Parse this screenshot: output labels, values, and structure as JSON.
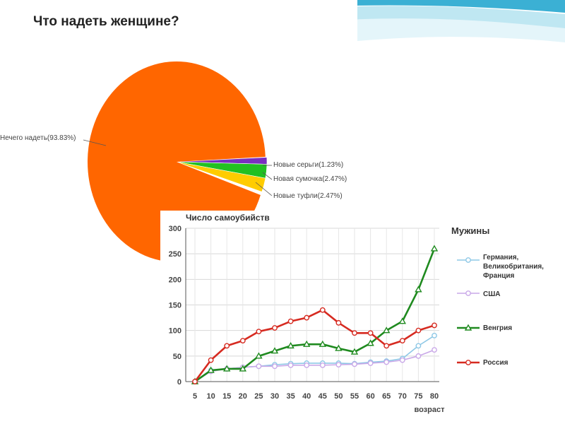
{
  "chart_data": [
    {
      "type": "pie",
      "title": "Что надеть женщине?",
      "slices": [
        {
          "label": "Нечего надеть(93.83%)",
          "value": 93.83,
          "color": "#ff6600"
        },
        {
          "label": "Новые серьги(1.23%)",
          "value": 1.23,
          "color": "#7a2fc0"
        },
        {
          "label": "Новая сумочка(2.47%)",
          "value": 2.47,
          "color": "#22c022"
        },
        {
          "label": "Новые туфли(2.47%)",
          "value": 2.47,
          "color": "#ffcc00"
        }
      ],
      "legend": "labels-outside"
    },
    {
      "type": "line",
      "title": "Число самоубийств",
      "xlabel": "возраст",
      "ylabel": "",
      "x": [
        5,
        10,
        15,
        20,
        25,
        30,
        35,
        40,
        45,
        50,
        55,
        60,
        65,
        70,
        75,
        80
      ],
      "ylim": [
        0,
        300
      ],
      "yticks": [
        0,
        50,
        100,
        150,
        200,
        250,
        300
      ],
      "grid": true,
      "legend": "right",
      "legend_title": "Мужины",
      "series": [
        {
          "name": "Германия, Великобритания, Франция",
          "color": "#8ec8e6",
          "marker": "circle-open",
          "values": [
            0,
            22,
            25,
            28,
            30,
            33,
            35,
            36,
            36,
            36,
            35,
            38,
            40,
            45,
            70,
            90
          ]
        },
        {
          "name": "США",
          "color": "#c9a8e8",
          "marker": "circle-open",
          "values": [
            0,
            20,
            25,
            28,
            30,
            30,
            32,
            32,
            32,
            33,
            34,
            36,
            38,
            42,
            50,
            62
          ]
        },
        {
          "name": "Венгрия",
          "color": "#1f8a1f",
          "marker": "triangle-open",
          "values": [
            0,
            22,
            25,
            25,
            50,
            60,
            70,
            73,
            73,
            65,
            58,
            75,
            100,
            118,
            180,
            260
          ]
        },
        {
          "name": "Россия",
          "color": "#d62a20",
          "marker": "circle-open",
          "values": [
            0,
            42,
            70,
            80,
            98,
            105,
            118,
            125,
            140,
            115,
            95,
            95,
            70,
            80,
            100,
            110
          ]
        }
      ]
    }
  ]
}
